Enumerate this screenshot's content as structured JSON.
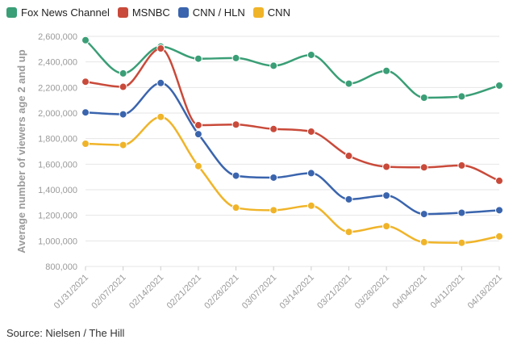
{
  "chart_data": {
    "type": "line",
    "title": "",
    "xlabel": "",
    "ylabel": "Average number of viewers age 2 and up",
    "ylim": [
      800000,
      2600000
    ],
    "yticks": [
      800000,
      1000000,
      1200000,
      1400000,
      1600000,
      1800000,
      2000000,
      2200000,
      2400000,
      2600000
    ],
    "ytick_labels": [
      "800,000",
      "1,000,000",
      "1,200,000",
      "1,400,000",
      "1,600,000",
      "1,800,000",
      "2,000,000",
      "2,200,000",
      "2,400,000",
      "2,600,000"
    ],
    "categories": [
      "01/31/2021",
      "02/07/2021",
      "02/14/2021",
      "02/21/2021",
      "02/28/2021",
      "03/07/2021",
      "03/14/2021",
      "03/21/2021",
      "03/28/2021",
      "04/04/2021",
      "04/11/2021",
      "04/18/2021"
    ],
    "grid": true,
    "legend_position": "top-left",
    "series": [
      {
        "name": "Fox News Channel",
        "color": "#3a9e76",
        "values": [
          2570000,
          2310000,
          2520000,
          2425000,
          2430000,
          2370000,
          2455000,
          2230000,
          2330000,
          2120000,
          2130000,
          2215000
        ]
      },
      {
        "name": "MSNBC",
        "color": "#c94a3a",
        "values": [
          2245000,
          2205000,
          2505000,
          1905000,
          1910000,
          1875000,
          1855000,
          1665000,
          1580000,
          1575000,
          1590000,
          1470000
        ]
      },
      {
        "name": "CNN / HLN",
        "color": "#3a64ad",
        "values": [
          2005000,
          1990000,
          2235000,
          1835000,
          1510000,
          1495000,
          1530000,
          1325000,
          1355000,
          1210000,
          1220000,
          1240000
        ]
      },
      {
        "name": "CNN",
        "color": "#f0b429",
        "values": [
          1760000,
          1750000,
          1970000,
          1585000,
          1260000,
          1240000,
          1275000,
          1070000,
          1115000,
          990000,
          985000,
          1035000
        ]
      }
    ]
  },
  "source_text": "Source: Nielsen / The Hill"
}
